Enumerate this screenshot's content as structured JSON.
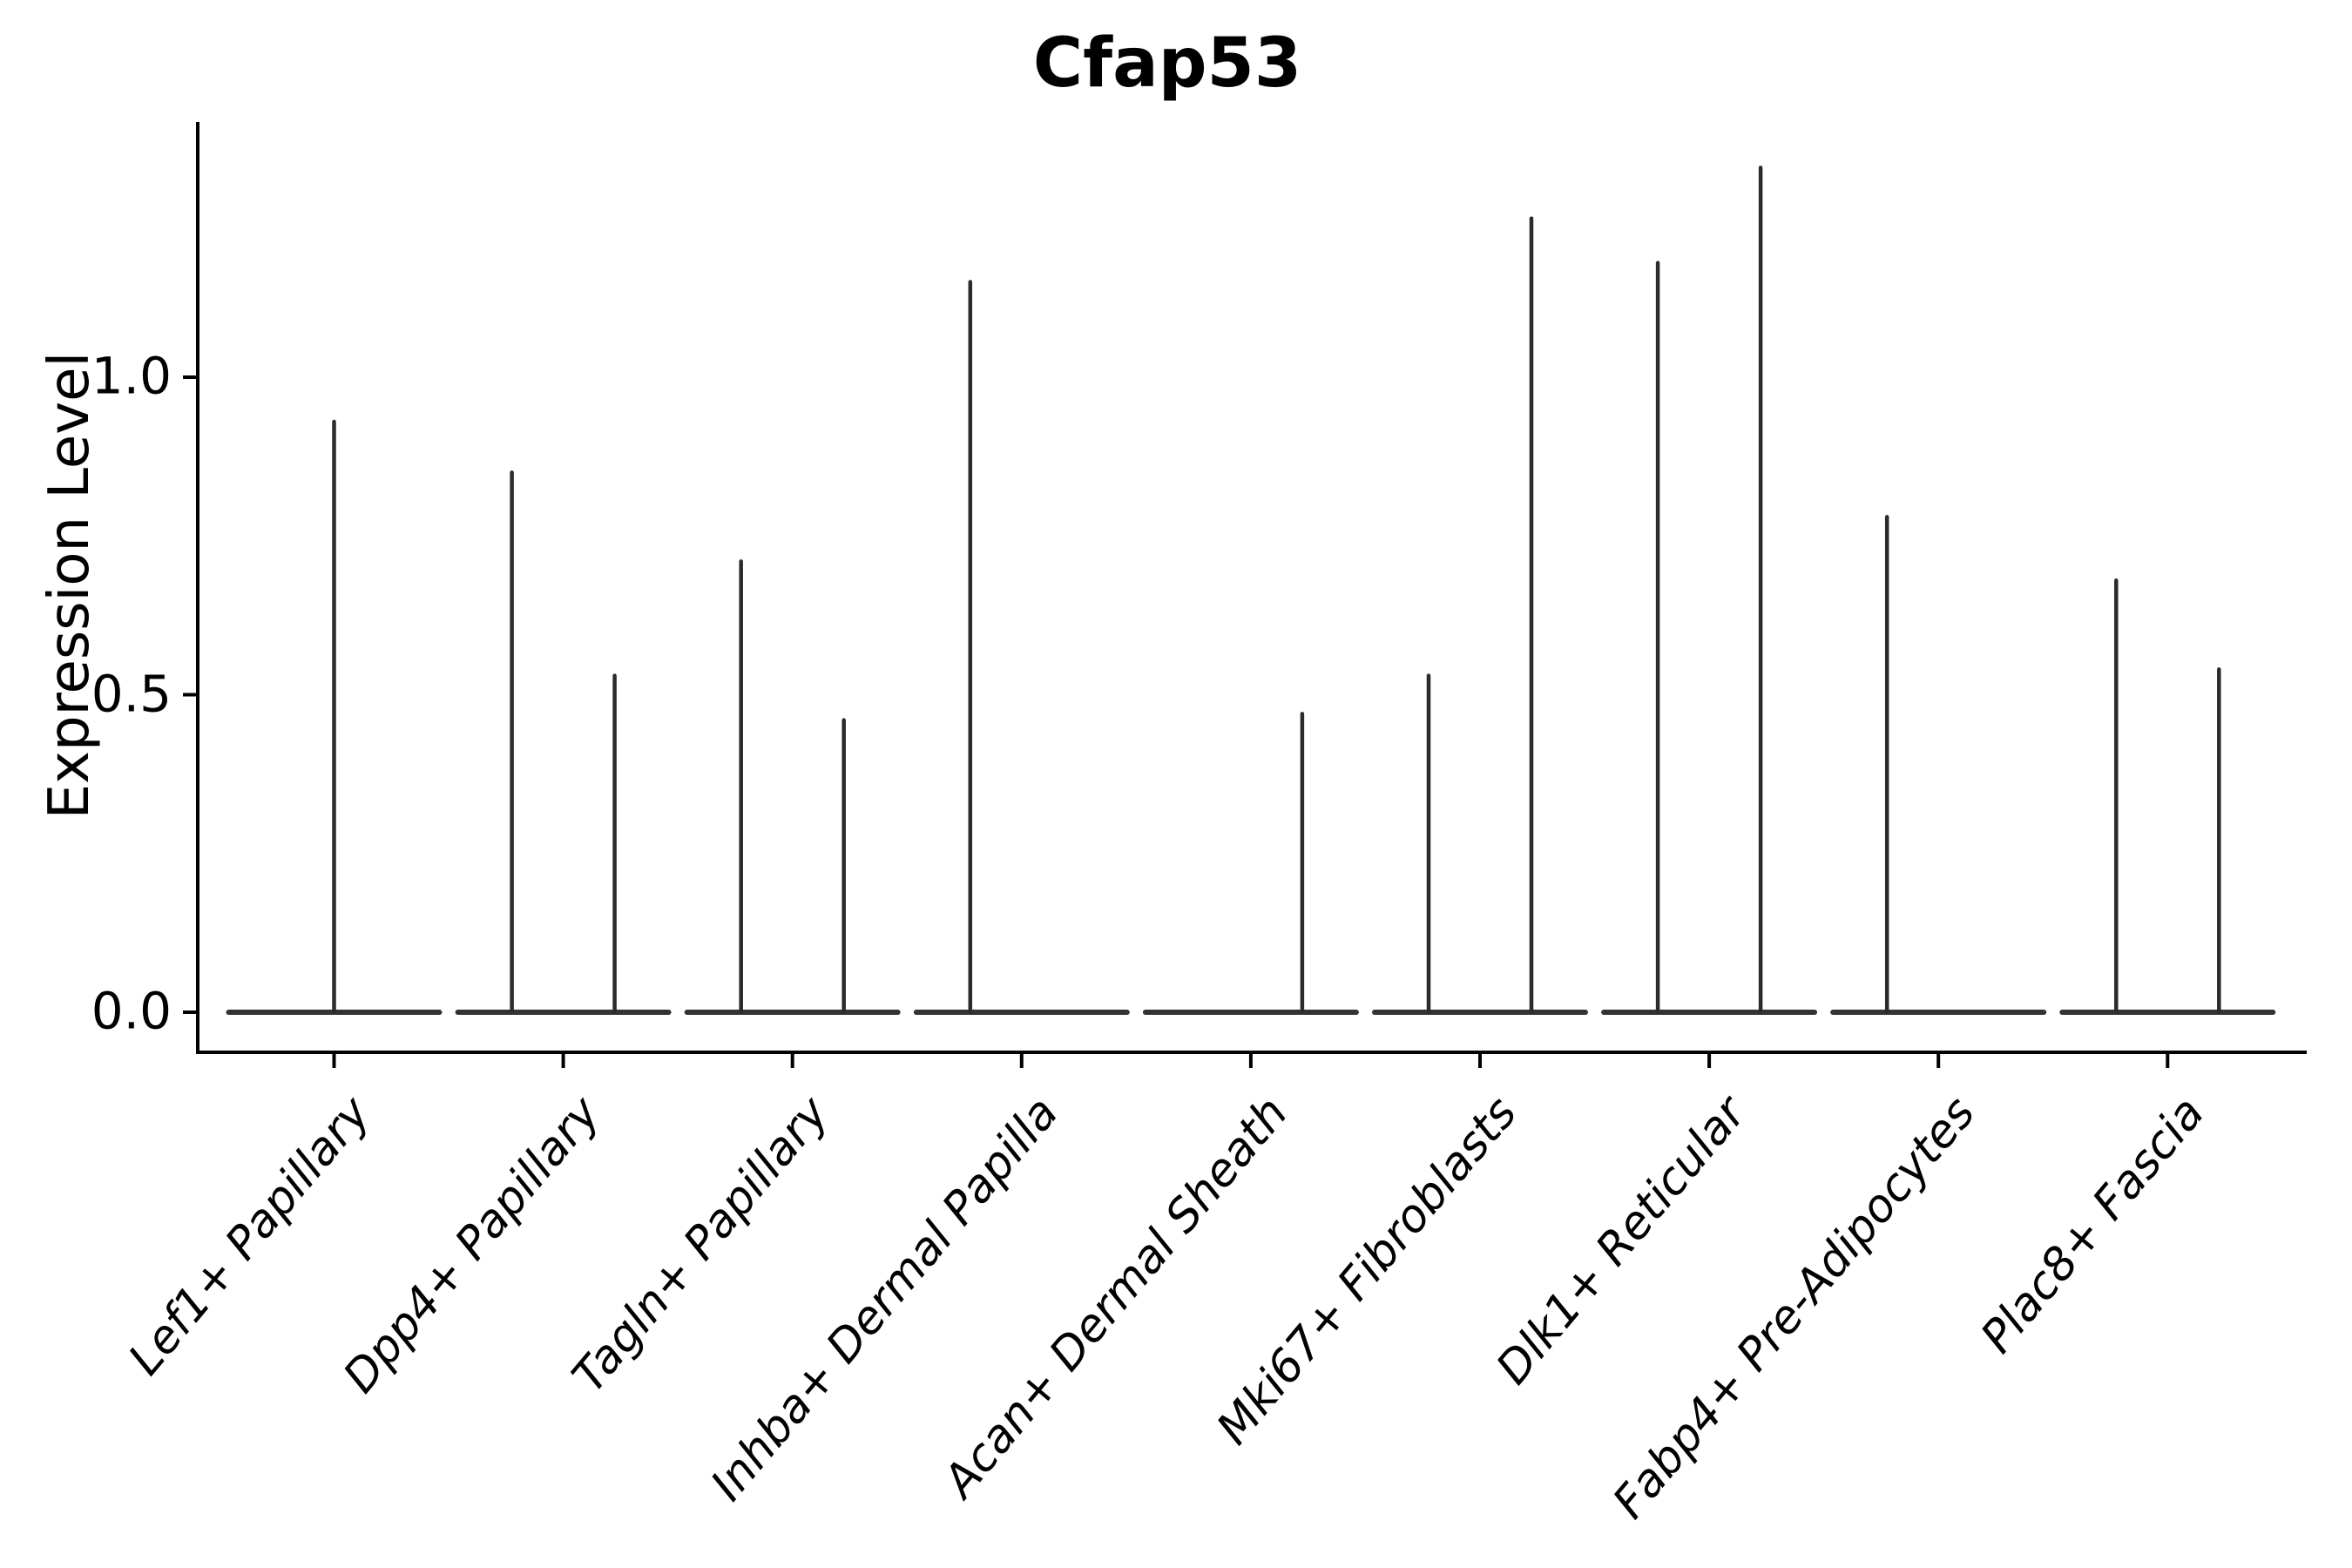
{
  "figure": {
    "title": "Cfap53"
  },
  "axes": {
    "y": {
      "label": "Expression Level",
      "ticks": [
        {
          "value": 0.0,
          "label": "0.0"
        },
        {
          "value": 0.5,
          "label": "0.5"
        },
        {
          "value": 1.0,
          "label": "1.0"
        }
      ]
    },
    "x": {
      "categories": [
        "Lef1+ Papillary",
        "Dpp4+ Papillary",
        "Tagln+ Papillary",
        "Inhba+ Dermal Papilla",
        "Acan+ Dermal Sheath",
        "Mki67+ Fibroblasts",
        "Dlk1+ Reticular",
        "Fabp4+ Pre-Adipocytes",
        "Plac8+ Fascia"
      ]
    }
  },
  "chart_data": {
    "type": "violin",
    "title": "Cfap53",
    "xlabel": "",
    "ylabel": "Expression Level",
    "ylim": [
      -0.06,
      1.4
    ],
    "grid": false,
    "legend": "none",
    "description": "Each category shows violin(s) collapsed to a flat line at expression 0 with a thin vertical spike reaching the maximum expression value; spikes sit at the left, center or right slot within each category.",
    "categories": [
      "Lef1+ Papillary",
      "Dpp4+ Papillary",
      "Tagln+ Papillary",
      "Inhba+ Dermal Papilla",
      "Acan+ Dermal Sheath",
      "Mki67+ Fibroblasts",
      "Dlk1+ Reticular",
      "Fabp4+ Pre-Adipocytes",
      "Plac8+ Fascia"
    ],
    "baseline_value": 0.0,
    "violin_spikes": [
      {
        "category_index": 0,
        "category": "Lef1+ Papillary",
        "slot": "center",
        "peak_value": 0.93
      },
      {
        "category_index": 1,
        "category": "Dpp4+ Papillary",
        "slot": "left",
        "peak_value": 0.85
      },
      {
        "category_index": 1,
        "category": "Dpp4+ Papillary",
        "slot": "right",
        "peak_value": 0.53
      },
      {
        "category_index": 2,
        "category": "Tagln+ Papillary",
        "slot": "left",
        "peak_value": 0.71
      },
      {
        "category_index": 2,
        "category": "Tagln+ Papillary",
        "slot": "right",
        "peak_value": 0.46
      },
      {
        "category_index": 3,
        "category": "Inhba+ Dermal Papilla",
        "slot": "left",
        "peak_value": 1.15
      },
      {
        "category_index": 4,
        "category": "Acan+ Dermal Sheath",
        "slot": "right",
        "peak_value": 0.47
      },
      {
        "category_index": 5,
        "category": "Mki67+ Fibroblasts",
        "slot": "left",
        "peak_value": 0.53
      },
      {
        "category_index": 5,
        "category": "Mki67+ Fibroblasts",
        "slot": "right",
        "peak_value": 1.25
      },
      {
        "category_index": 6,
        "category": "Dlk1+ Reticular",
        "slot": "left",
        "peak_value": 1.18
      },
      {
        "category_index": 6,
        "category": "Dlk1+ Reticular",
        "slot": "right",
        "peak_value": 1.33
      },
      {
        "category_index": 7,
        "category": "Fabp4+ Pre-Adipocytes",
        "slot": "left",
        "peak_value": 0.78
      },
      {
        "category_index": 8,
        "category": "Plac8+ Fascia",
        "slot": "left",
        "peak_value": 0.68
      },
      {
        "category_index": 8,
        "category": "Plac8+ Fascia",
        "slot": "right",
        "peak_value": 0.54
      }
    ]
  },
  "style": {
    "violin_color": "#2b2b2b",
    "baseline_color": "#333333",
    "axis_color": "#000000",
    "background": "#ffffff"
  }
}
